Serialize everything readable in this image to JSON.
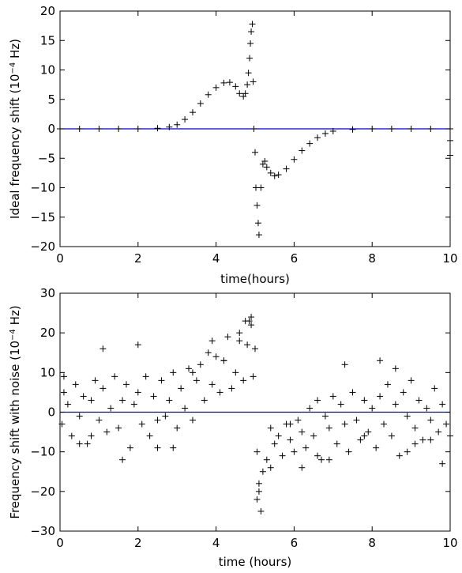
{
  "chart_data": [
    {
      "type": "scatter",
      "ylabel_main": "Ideal frequency shift ",
      "ylabel_unit": "(10^{-4} Hz)",
      "xlabel": "time(hours)",
      "xlim": [
        0,
        10
      ],
      "ylim": [
        -20,
        20
      ],
      "xticks": [
        0,
        2,
        4,
        6,
        8,
        10
      ],
      "yticks": [
        -20,
        -15,
        -10,
        -5,
        0,
        5,
        10,
        15,
        20
      ],
      "grid": false,
      "marker": "+",
      "marker_color": "#000000",
      "reference_line": {
        "y": 0,
        "color": "#0000cc"
      },
      "series": [
        {
          "x": [
            0.0,
            0.5,
            1.0,
            1.5,
            2.0,
            2.5,
            2.8,
            3.0,
            3.2,
            3.4,
            3.6,
            3.8,
            4.0,
            4.2,
            4.35,
            4.5,
            4.6,
            4.7,
            4.75,
            4.8,
            4.83,
            4.86,
            4.88,
            4.9,
            4.93,
            4.95,
            4.97,
            5.0,
            5.02,
            5.05,
            5.08,
            5.1,
            5.15,
            5.2,
            5.25,
            5.3,
            5.4,
            5.5,
            5.6,
            5.8,
            6.0,
            6.2,
            6.4,
            6.6,
            6.8,
            7.0,
            7.5,
            8.0,
            8.5,
            9.0,
            9.5,
            10.0,
            10.0,
            10.0
          ],
          "y": [
            0.0,
            0.0,
            0.0,
            0.0,
            0.0,
            0.1,
            0.3,
            0.7,
            1.6,
            2.8,
            4.3,
            5.8,
            7.0,
            7.8,
            7.9,
            7.2,
            6.0,
            5.5,
            6.0,
            7.5,
            9.5,
            12.0,
            14.5,
            16.5,
            17.8,
            8.0,
            0.0,
            -4.0,
            -10.0,
            -13.0,
            -16.0,
            -18.0,
            -10.0,
            -6.0,
            -5.5,
            -6.5,
            -7.5,
            -8.0,
            -7.8,
            -6.8,
            -5.2,
            -3.7,
            -2.5,
            -1.5,
            -0.8,
            -0.4,
            -0.1,
            0.0,
            0.0,
            0.0,
            0.0,
            0.0,
            -2.0,
            -4.5
          ]
        }
      ]
    },
    {
      "type": "scatter",
      "ylabel_main": "Frequency shift with noise ",
      "ylabel_unit": "(10^{-4} Hz)",
      "xlabel": "time (hours)",
      "xlim": [
        0,
        10
      ],
      "ylim": [
        -30,
        30
      ],
      "xticks": [
        0,
        2,
        4,
        6,
        8,
        10
      ],
      "yticks": [
        -30,
        -20,
        -10,
        0,
        10,
        20,
        30
      ],
      "grid": false,
      "marker": "+",
      "marker_color": "#000000",
      "reference_line": {
        "y": 0,
        "color": "#0000cc"
      },
      "series": [
        {
          "x": [
            0.05,
            0.1,
            0.2,
            0.3,
            0.4,
            0.5,
            0.6,
            0.7,
            0.8,
            0.9,
            1.0,
            1.1,
            1.2,
            1.3,
            1.4,
            1.5,
            1.6,
            1.7,
            1.8,
            1.9,
            2.0,
            2.1,
            2.2,
            2.3,
            2.4,
            2.5,
            2.6,
            2.7,
            2.8,
            2.9,
            3.0,
            3.1,
            3.2,
            3.3,
            3.4,
            3.5,
            3.6,
            3.7,
            3.8,
            3.9,
            4.0,
            4.1,
            4.2,
            4.3,
            4.4,
            4.5,
            4.6,
            4.7,
            4.8,
            4.85,
            4.9,
            4.95,
            5.0,
            5.05,
            5.1,
            5.15,
            5.2,
            5.3,
            5.4,
            5.5,
            5.6,
            5.7,
            5.8,
            5.9,
            6.0,
            6.1,
            6.2,
            6.3,
            6.4,
            6.5,
            6.6,
            6.7,
            6.8,
            6.9,
            7.0,
            7.1,
            7.2,
            7.3,
            7.4,
            7.5,
            7.6,
            7.7,
            7.8,
            7.9,
            8.0,
            8.1,
            8.2,
            8.3,
            8.4,
            8.5,
            8.6,
            8.7,
            8.8,
            8.9,
            9.0,
            9.1,
            9.2,
            9.3,
            9.4,
            9.5,
            9.6,
            9.7,
            9.8,
            9.9,
            10.0,
            1.1,
            2.0,
            4.6,
            4.75,
            4.9,
            5.05,
            5.1,
            6.2,
            6.9,
            7.3,
            8.6,
            8.2,
            9.8,
            0.1,
            0.5,
            2.5,
            3.4,
            5.4,
            7.8,
            9.5,
            4.2,
            3.9,
            1.6,
            2.9,
            5.9,
            8.9,
            0.8,
            6.6,
            9.1
          ],
          "y": [
            -3,
            5,
            2,
            -6,
            7,
            -1,
            4,
            -8,
            3,
            8,
            -2,
            6,
            -5,
            1,
            9,
            -4,
            3,
            7,
            -9,
            2,
            5,
            -3,
            9,
            -6,
            4,
            -2,
            8,
            -1,
            3,
            10,
            -4,
            6,
            1,
            11,
            -2,
            8,
            12,
            3,
            15,
            7,
            14,
            5,
            13,
            19,
            6,
            10,
            18,
            8,
            17,
            23,
            24,
            9,
            16,
            -10,
            -20,
            -25,
            -15,
            -12,
            -4,
            -8,
            -6,
            -11,
            -3,
            -7,
            -10,
            -2,
            -5,
            -9,
            1,
            -6,
            3,
            -12,
            -1,
            -4,
            4,
            -8,
            2,
            -3,
            -10,
            5,
            -2,
            -7,
            3,
            -5,
            1,
            -9,
            4,
            -3,
            7,
            -6,
            2,
            -11,
            5,
            -1,
            8,
            -4,
            3,
            -7,
            1,
            -2,
            6,
            -5,
            2,
            -3,
            -6,
            16,
            17,
            20,
            23,
            22,
            -22,
            -18,
            -14,
            -12,
            12,
            11,
            13,
            -13,
            9,
            -8,
            -9,
            10,
            -14,
            -6,
            -7,
            13,
            18,
            -12,
            -9,
            -3,
            -10,
            -6,
            -11,
            -8
          ]
        }
      ]
    }
  ]
}
